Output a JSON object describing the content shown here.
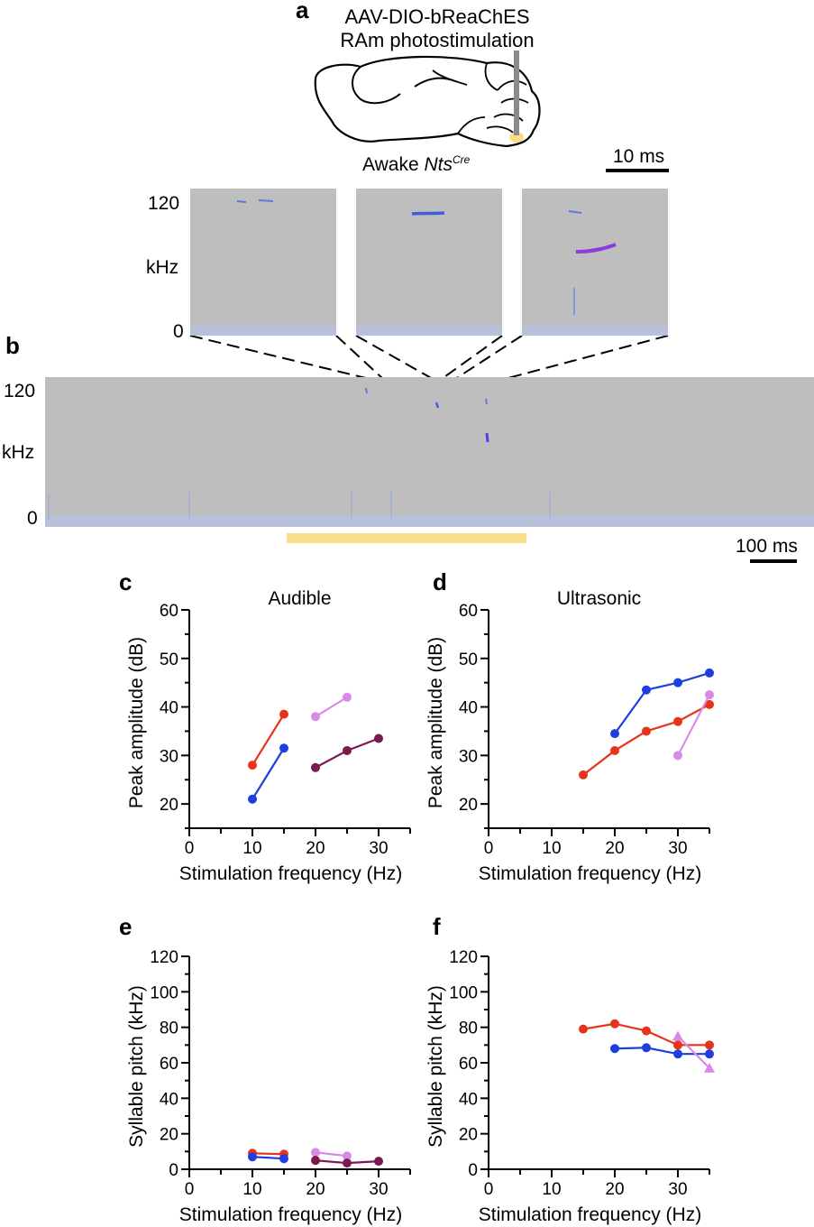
{
  "panels": {
    "a": "a",
    "b": "b",
    "c": "c",
    "d": "d",
    "e": "e",
    "f": "f"
  },
  "panel_a": {
    "virus": "AAV-DIO-bReaChES",
    "stim": "RAm photostimulation",
    "condition_prefix": "Awake",
    "genotype": "Nts",
    "genotype_sup": "Cre",
    "scale_label": "10 ms",
    "y_top": "120",
    "y_unit": "kHz",
    "y_bottom": "0"
  },
  "panel_b": {
    "y_top": "120",
    "y_unit": "kHz",
    "y_bottom": "0",
    "scale_label": "100 ms"
  },
  "colors": {
    "red": "#e8331c",
    "blue": "#1f3ee0",
    "lilac": "#d98ae8",
    "maroon": "#7e1850",
    "light": "#f9dd8a",
    "spectro_bg": "#bebebe"
  },
  "chart_data": [
    {
      "id": "c",
      "type": "line",
      "title": "Audible",
      "xlabel": "Stimulation frequency (Hz)",
      "ylabel": "Peak amplitude (dB)",
      "xlim": [
        0,
        35
      ],
      "ylim": [
        15,
        60
      ],
      "xticks": [
        0,
        10,
        20,
        30
      ],
      "yticks": [
        20,
        30,
        40,
        50,
        60
      ],
      "series": [
        {
          "color": "red",
          "marker": "circle",
          "x": [
            10,
            15
          ],
          "y": [
            28,
            38.5
          ]
        },
        {
          "color": "blue",
          "marker": "circle",
          "x": [
            10,
            15
          ],
          "y": [
            21,
            31.5
          ]
        },
        {
          "color": "lilac",
          "marker": "circle",
          "x": [
            20,
            25
          ],
          "y": [
            38,
            42
          ]
        },
        {
          "color": "maroon",
          "marker": "circle",
          "x": [
            20,
            25,
            30
          ],
          "y": [
            27.5,
            31,
            33.5
          ]
        }
      ]
    },
    {
      "id": "d",
      "type": "line",
      "title": "Ultrasonic",
      "xlabel": "Stimulation frequency (Hz)",
      "ylabel": "Peak amplitude (dB)",
      "xlim": [
        0,
        35
      ],
      "ylim": [
        15,
        60
      ],
      "xticks": [
        0,
        10,
        20,
        30
      ],
      "yticks": [
        20,
        30,
        40,
        50,
        60
      ],
      "series": [
        {
          "color": "blue",
          "marker": "circle",
          "x": [
            20,
            25,
            30,
            35
          ],
          "y": [
            34.5,
            43.5,
            45,
            47
          ]
        },
        {
          "color": "red",
          "marker": "circle",
          "x": [
            15,
            20,
            25,
            30,
            35
          ],
          "y": [
            26,
            31,
            35,
            37,
            40.5
          ]
        },
        {
          "color": "lilac",
          "marker": "circle",
          "x": [
            30,
            35
          ],
          "y": [
            30,
            42.5
          ]
        }
      ]
    },
    {
      "id": "e",
      "type": "line",
      "title": "",
      "xlabel": "Stimulation frequency (Hz)",
      "ylabel": "Syllable pitch (kHz)",
      "xlim": [
        0,
        35
      ],
      "ylim": [
        0,
        120
      ],
      "xticks": [
        0,
        10,
        20,
        30
      ],
      "yticks": [
        0,
        20,
        40,
        60,
        80,
        100,
        120
      ],
      "series": [
        {
          "color": "red",
          "marker": "circle",
          "x": [
            10,
            15
          ],
          "y": [
            9,
            8.5
          ]
        },
        {
          "color": "blue",
          "marker": "circle",
          "x": [
            10,
            15
          ],
          "y": [
            7,
            6
          ]
        },
        {
          "color": "lilac",
          "marker": "circle",
          "x": [
            20,
            25
          ],
          "y": [
            9.5,
            7.5
          ]
        },
        {
          "color": "maroon",
          "marker": "circle",
          "x": [
            20,
            25,
            30
          ],
          "y": [
            5,
            3.5,
            4.5
          ]
        }
      ]
    },
    {
      "id": "f",
      "type": "line",
      "title": "",
      "xlabel": "Stimulation frequency (Hz)",
      "ylabel": "Syllable pitch (kHz)",
      "xlim": [
        0,
        35
      ],
      "ylim": [
        0,
        120
      ],
      "xticks": [
        0,
        10,
        20,
        30
      ],
      "yticks": [
        0,
        20,
        40,
        60,
        80,
        100,
        120
      ],
      "series": [
        {
          "color": "red",
          "marker": "circle",
          "x": [
            15,
            20,
            25,
            30,
            35
          ],
          "y": [
            79,
            82,
            78,
            70,
            70
          ]
        },
        {
          "color": "blue",
          "marker": "circle",
          "x": [
            20,
            25,
            30,
            35
          ],
          "y": [
            68,
            68.5,
            65,
            65
          ]
        },
        {
          "color": "lilac",
          "marker": "triangle",
          "x": [
            30,
            35
          ],
          "y": [
            75,
            57
          ]
        }
      ]
    }
  ]
}
